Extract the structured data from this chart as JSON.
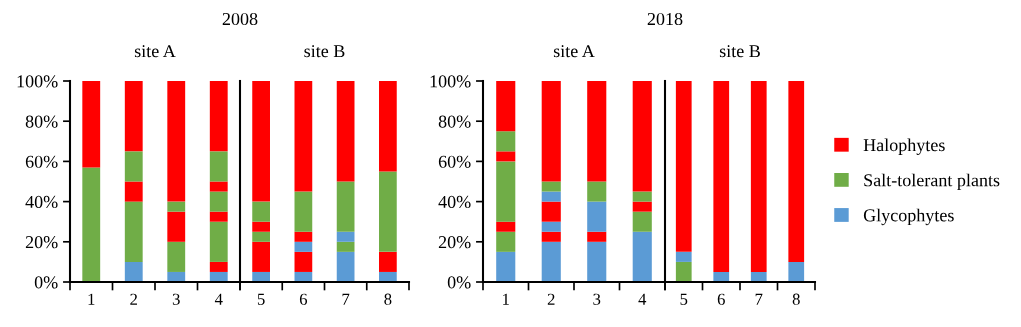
{
  "chart_data": [
    {
      "type": "bar",
      "stacked": true,
      "title": "2008",
      "subtitle": "site A",
      "categories": [
        "1",
        "2",
        "3",
        "4"
      ],
      "ylim": [
        0,
        100
      ],
      "yticks": [
        {
          "value": 0,
          "label": "0%"
        },
        {
          "value": 20,
          "label": "20%"
        },
        {
          "value": 40,
          "label": "40%"
        },
        {
          "value": 60,
          "label": "60%"
        },
        {
          "value": 80,
          "label": "80%"
        },
        {
          "value": 100,
          "label": "100%"
        }
      ],
      "series": [
        {
          "color": "#5b9bd5",
          "values": [
            0,
            10,
            5,
            5
          ]
        },
        {
          "color": "#70ad47",
          "values": [
            57,
            30,
            15,
            0
          ]
        },
        {
          "color": "#ff0000",
          "values": [
            43,
            10,
            15,
            5
          ]
        },
        {
          "color": "#5b9bd5",
          "values": [
            0,
            0,
            0,
            0
          ]
        },
        {
          "color": "#70ad47",
          "values": [
            0,
            15,
            5,
            20
          ]
        },
        {
          "color": "#ff0000",
          "values": [
            0,
            35,
            60,
            5
          ]
        },
        {
          "color": "#5b9bd5",
          "values": [
            0,
            0,
            0,
            0
          ]
        },
        {
          "color": "#70ad47",
          "values": [
            0,
            0,
            0,
            10
          ]
        },
        {
          "color": "#ff0000",
          "values": [
            0,
            0,
            0,
            5
          ]
        },
        {
          "color": "#70ad47",
          "values": [
            0,
            0,
            0,
            15
          ]
        },
        {
          "color": "#ff0000",
          "values": [
            0,
            0,
            0,
            35
          ]
        }
      ]
    },
    {
      "type": "bar",
      "stacked": true,
      "subtitle": "site B",
      "categories": [
        "5",
        "6",
        "7",
        "8"
      ],
      "ylim": [
        0,
        100
      ],
      "tick_labels": "x",
      "series": [
        {
          "color": "#5b9bd5",
          "values": [
            5,
            5,
            15,
            5
          ]
        },
        {
          "color": "#70ad47",
          "values": [
            0,
            0,
            5,
            0
          ]
        },
        {
          "color": "#ff0000",
          "values": [
            15,
            10,
            0,
            10
          ]
        },
        {
          "color": "#5b9bd5",
          "values": [
            0,
            5,
            5,
            0
          ]
        },
        {
          "color": "#70ad47",
          "values": [
            5,
            0,
            25,
            40
          ]
        },
        {
          "color": "#ff0000",
          "values": [
            5,
            5,
            50,
            45
          ]
        },
        {
          "color": "#5b9bd5",
          "values": [
            0,
            0,
            0,
            0
          ]
        },
        {
          "color": "#70ad47",
          "values": [
            10,
            20,
            0,
            0
          ]
        },
        {
          "color": "#ff0000",
          "values": [
            60,
            55,
            0,
            0
          ]
        },
        {
          "color": "#70ad47",
          "values": [
            0,
            0,
            0,
            0
          ]
        },
        {
          "color": "#ff0000",
          "values": [
            0,
            0,
            0,
            0
          ]
        }
      ]
    },
    {
      "type": "bar",
      "stacked": true,
      "title": "2018",
      "subtitle": "site A",
      "categories": [
        "1",
        "2",
        "3",
        "4"
      ],
      "ylim": [
        0,
        100
      ],
      "yticks": [
        {
          "value": 0,
          "label": "0%"
        },
        {
          "value": 20,
          "label": "20%"
        },
        {
          "value": 40,
          "label": "40%"
        },
        {
          "value": 60,
          "label": "60%"
        },
        {
          "value": 80,
          "label": "80%"
        },
        {
          "value": 100,
          "label": "100%"
        }
      ],
      "series": [
        {
          "color": "#5b9bd5",
          "values": [
            15,
            20,
            20,
            25
          ]
        },
        {
          "color": "#70ad47",
          "values": [
            10,
            0,
            0,
            10
          ]
        },
        {
          "color": "#ff0000",
          "values": [
            5,
            5,
            5,
            5
          ]
        },
        {
          "color": "#5b9bd5",
          "values": [
            0,
            5,
            15,
            0
          ]
        },
        {
          "color": "#70ad47",
          "values": [
            30,
            0,
            10,
            5
          ]
        },
        {
          "color": "#ff0000",
          "values": [
            5,
            10,
            50,
            55
          ]
        },
        {
          "color": "#5b9bd5",
          "values": [
            0,
            5,
            0,
            0
          ]
        },
        {
          "color": "#70ad47",
          "values": [
            10,
            5,
            0,
            0
          ]
        },
        {
          "color": "#ff0000",
          "values": [
            25,
            50,
            0,
            0
          ]
        },
        {
          "color": "#70ad47",
          "values": [
            0,
            0,
            0,
            0
          ]
        },
        {
          "color": "#ff0000",
          "values": [
            0,
            0,
            0,
            0
          ]
        }
      ]
    },
    {
      "type": "bar",
      "stacked": true,
      "subtitle": "site B",
      "categories": [
        "5",
        "6",
        "7",
        "8"
      ],
      "ylim": [
        0,
        100
      ],
      "tick_labels": "x",
      "legend": "right",
      "series": [
        {
          "name": "Glycophytes",
          "color": "#5b9bd5",
          "values": [
            0,
            5,
            5,
            10
          ]
        },
        {
          "name": "Salt-tolerant plants",
          "color": "#70ad47",
          "values": [
            10,
            0,
            0,
            0
          ]
        },
        {
          "name": "Halophytes",
          "color": "#ff0000",
          "values": [
            0,
            95,
            95,
            90
          ]
        },
        {
          "color": "#5b9bd5",
          "values": [
            5,
            0,
            0,
            0
          ]
        },
        {
          "color": "#70ad47",
          "values": [
            0,
            0,
            0,
            0
          ]
        },
        {
          "color": "#ff0000",
          "values": [
            85,
            0,
            0,
            0
          ]
        },
        {
          "color": "#5b9bd5",
          "values": [
            0,
            0,
            0,
            0
          ]
        },
        {
          "color": "#70ad47",
          "values": [
            0,
            0,
            0,
            0
          ]
        },
        {
          "color": "#ff0000",
          "values": [
            0,
            0,
            0,
            0
          ]
        },
        {
          "color": "#70ad47",
          "values": [
            0,
            0,
            0,
            0
          ]
        },
        {
          "color": "#ff0000",
          "values": [
            0,
            0,
            0,
            0
          ]
        }
      ]
    }
  ]
}
